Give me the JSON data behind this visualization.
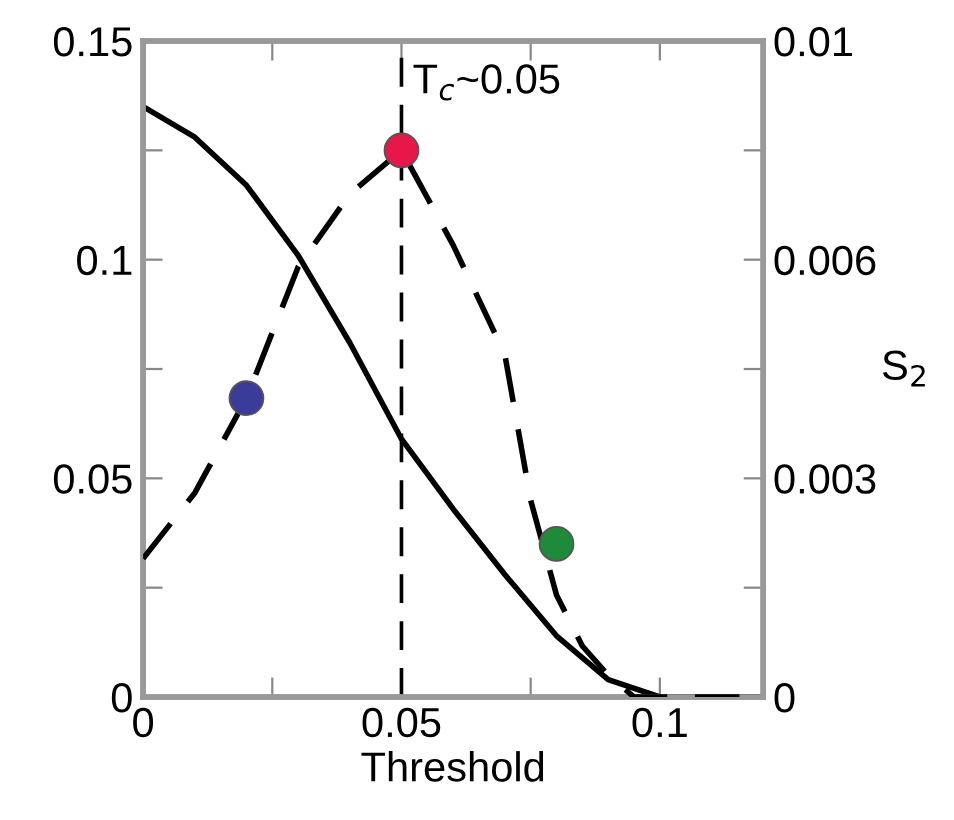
{
  "chart_data": {
    "type": "line",
    "xlabel": "Threshold",
    "y2label": "S$_{2}$",
    "xlim": [
      0,
      0.12
    ],
    "xticks": [
      0,
      {
        "value": 0.025,
        "label": null
      },
      0.05,
      {
        "value": 0.075,
        "label": null
      },
      0.1
    ],
    "ylim": [
      0,
      0.15
    ],
    "yticks": [
      0,
      {
        "value": 0.025,
        "label": null
      },
      0.05,
      {
        "value": 0.075,
        "label": null
      },
      0.1,
      {
        "value": 0.125,
        "label": null
      },
      0.15
    ],
    "y2lim": [
      0,
      0.009
    ],
    "y2ticks": [
      0,
      {
        "value": 0.0015,
        "label": null
      },
      0.003,
      {
        "value": 0.0045,
        "label": null
      },
      0.006,
      {
        "value": 0.0075,
        "label": null
      },
      {
        "value": 0.009,
        "label": "0.01"
      }
    ],
    "grid": false,
    "legend": false,
    "ref_lines": [
      {
        "axis": "x",
        "value": 0.05,
        "label": "T$_{c}$~0.05",
        "color": "#000000",
        "line_style": "dashed"
      }
    ],
    "series": [
      {
        "color": "#000000",
        "line_style": "solid",
        "marker": "none",
        "x": [
          0,
          0.01,
          0.02,
          0.03,
          0.04,
          0.05,
          0.06,
          0.07,
          0.08,
          0.09,
          0.1,
          0.12
        ],
        "values": [
          0.135,
          0.128,
          0.117,
          0.101,
          0.081,
          0.059,
          0.043,
          0.028,
          0.014,
          0.004,
          0,
          0
        ]
      },
      {
        "axis": "y2",
        "color": "#000000",
        "line_style": "dashed",
        "marker": "none",
        "x": [
          0,
          0.01,
          0.02,
          0.03,
          0.04,
          0.05,
          0.06,
          0.07,
          0.075,
          0.08,
          0.085,
          0.09,
          0.095,
          0.12
        ],
        "values": [
          0.0019,
          0.0028,
          0.0041,
          0.0059,
          0.0069,
          0.0075,
          0.0062,
          0.0047,
          0.0027,
          0.0014,
          0.0007,
          0.0003,
          0,
          0
        ]
      },
      {
        "type": "scatter",
        "axis": "y2",
        "marker": "circle",
        "x": [
          0.02,
          0.05,
          0.08
        ],
        "values": [
          0.0041,
          0.0075,
          0.0021
        ],
        "colors": [
          "#3b3b9a",
          "#e8174a",
          "#1f8a3a"
        ]
      }
    ]
  }
}
